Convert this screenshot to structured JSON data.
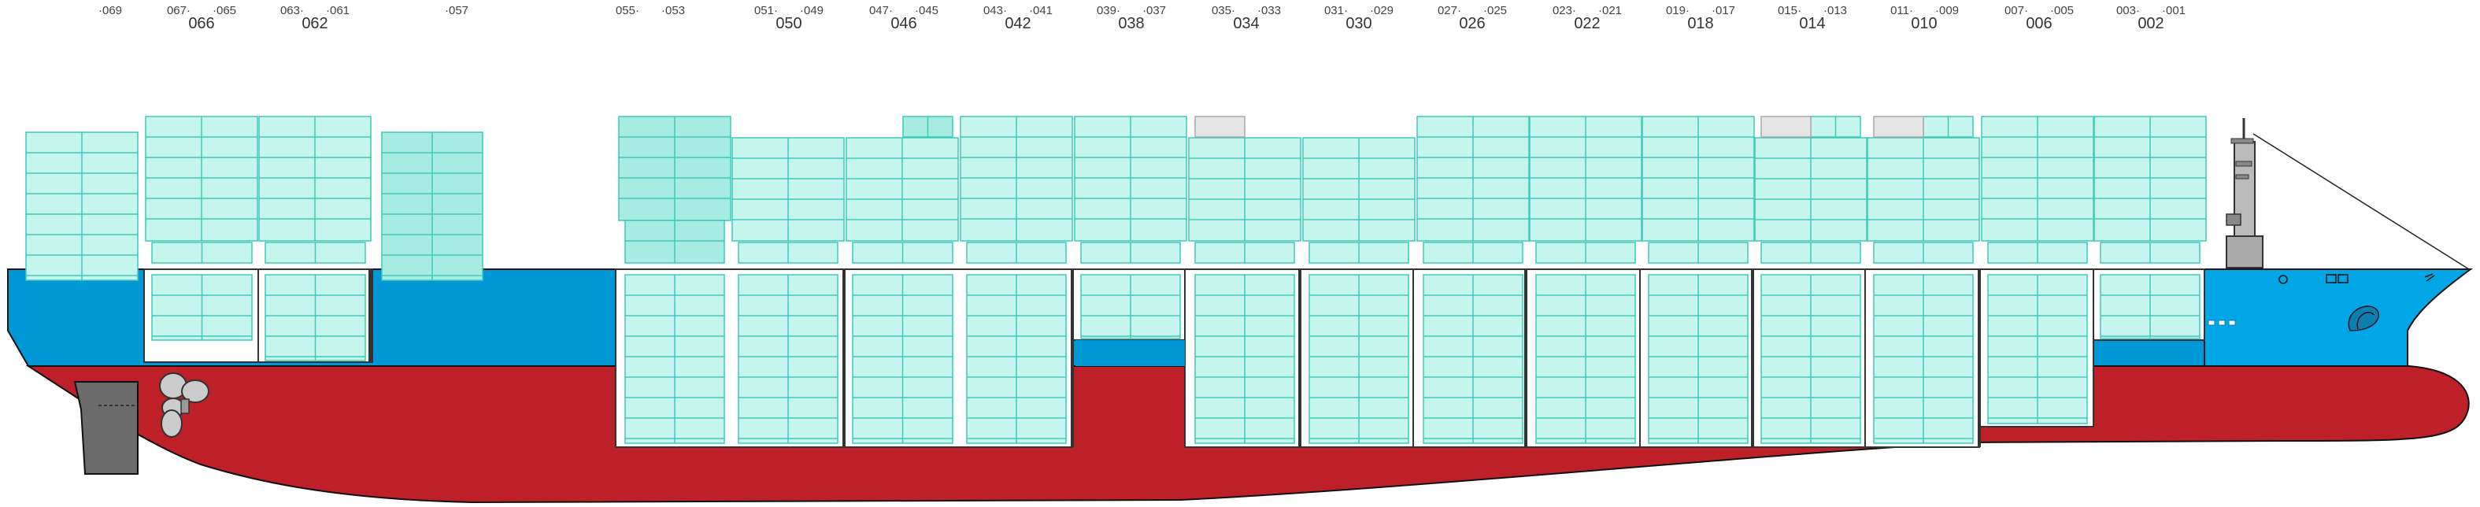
{
  "colors": {
    "hull_red": "#bd2029",
    "hull_blue": "#0097d6",
    "bow_blue": "#00a6e6",
    "container_fill": "#c6f5ee",
    "container_fill_dark": "#a6ece0",
    "container_stroke": "#3ec9b8",
    "empty_slot_fill": "#e6e6e6",
    "empty_slot_stroke": "#aaaaaa",
    "outline": "#111111"
  },
  "bays": [
    {
      "main": "",
      "left": "",
      "right": "·069"
    },
    {
      "main": "066",
      "left": "067·",
      "right": "·065"
    },
    {
      "main": "062",
      "left": "063·",
      "right": "·061"
    },
    {
      "main": "",
      "left": "",
      "right": "·057"
    },
    {
      "main": "",
      "left": "055·",
      "right": "·053"
    },
    {
      "main": "050",
      "left": "051·",
      "right": "·049"
    },
    {
      "main": "046",
      "left": "047·",
      "right": "·045"
    },
    {
      "main": "042",
      "left": "043·",
      "right": "·041"
    },
    {
      "main": "038",
      "left": "039·",
      "right": "·037"
    },
    {
      "main": "034",
      "left": "035·",
      "right": "·033"
    },
    {
      "main": "030",
      "left": "031·",
      "right": "·029"
    },
    {
      "main": "026",
      "left": "027·",
      "right": "·025"
    },
    {
      "main": "022",
      "left": "023·",
      "right": "·021"
    },
    {
      "main": "018",
      "left": "019·",
      "right": "·017"
    },
    {
      "main": "014",
      "left": "015·",
      "right": "·013"
    },
    {
      "main": "010",
      "left": "011·",
      "right": "·009"
    },
    {
      "main": "006",
      "left": "007·",
      "right": "·005"
    },
    {
      "main": "002",
      "left": "003·",
      "right": "·001"
    }
  ]
}
